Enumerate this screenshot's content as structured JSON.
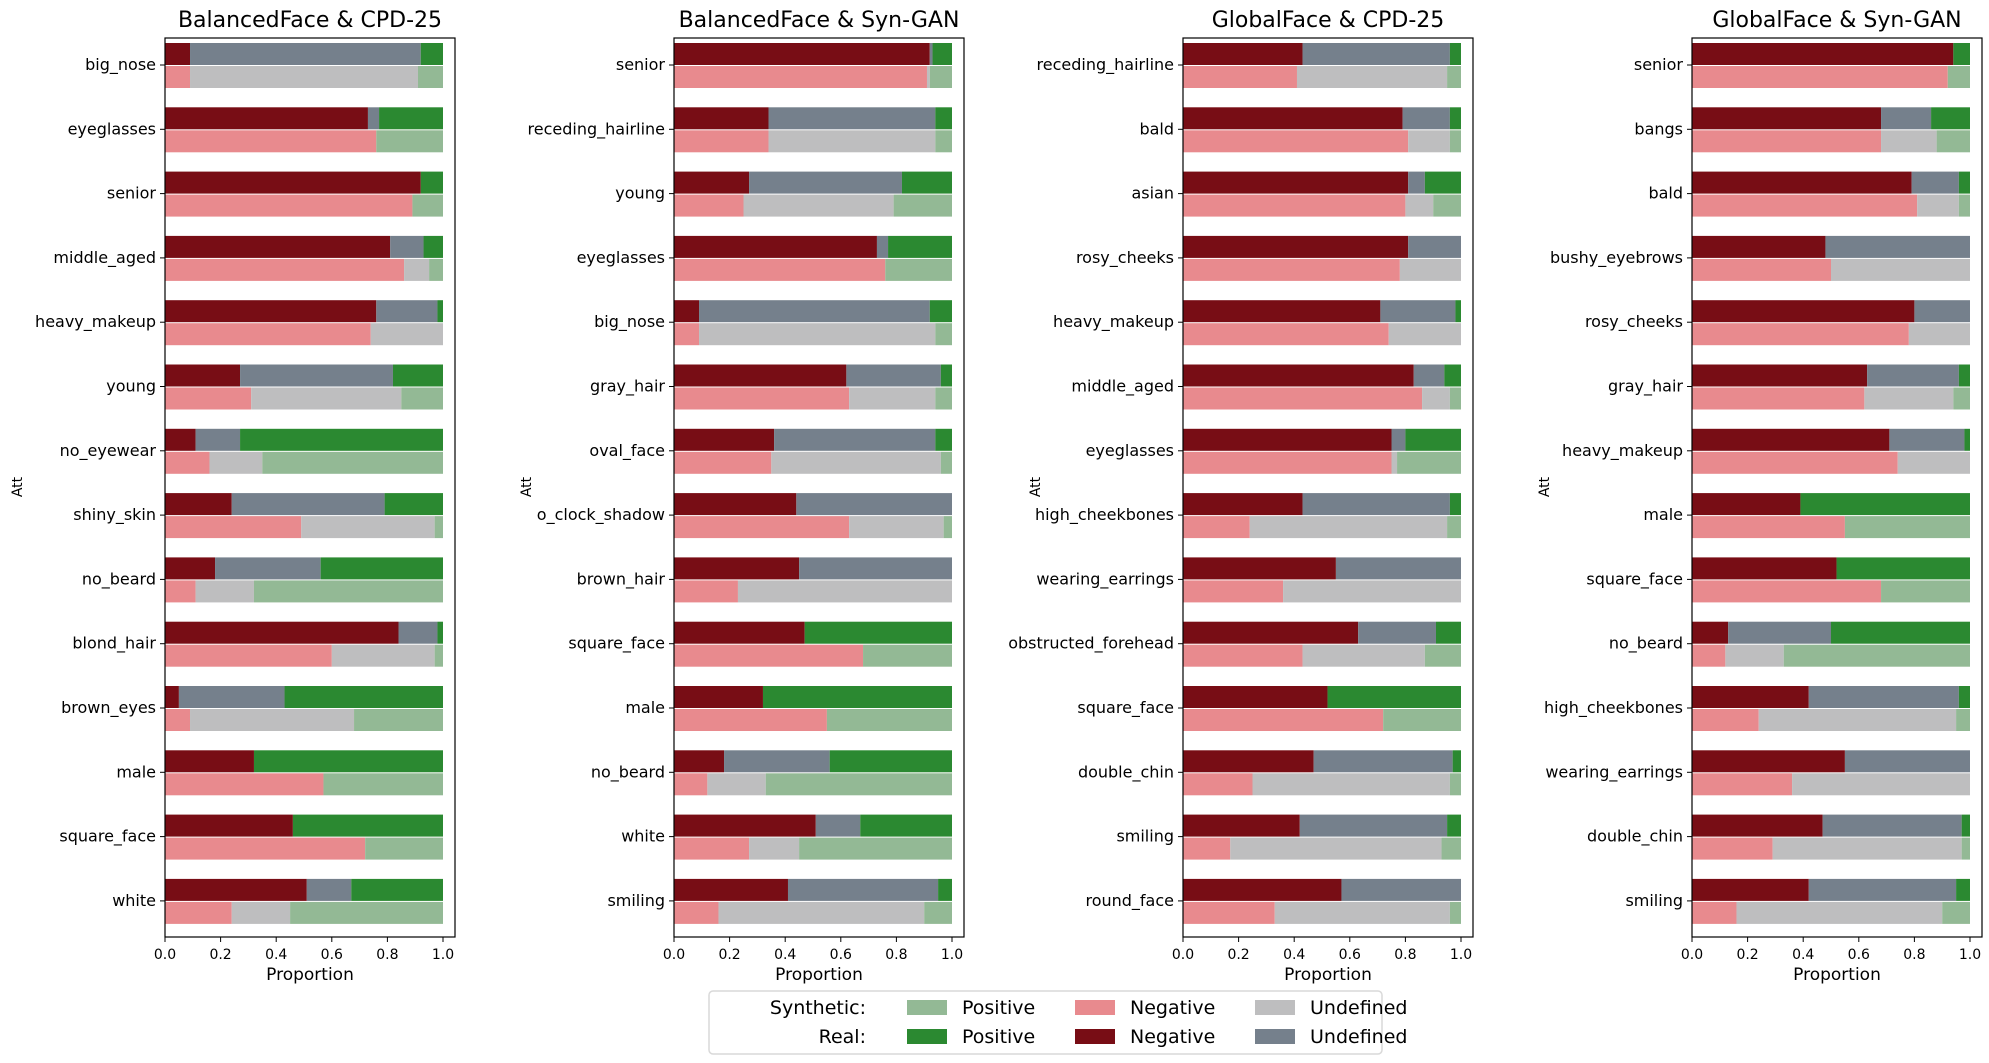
{
  "chart_data": [
    {
      "type": "bar",
      "orientation": "horizontal-stacked",
      "title": "BalancedFace & CPD-25",
      "xlabel": "Proportion",
      "ylabel": "Att",
      "xlim": [
        0,
        1.0
      ],
      "xticks": [
        "0.0",
        "0.2",
        "0.4",
        "0.6",
        "0.8",
        "1.0"
      ],
      "categories": [
        "big_nose",
        "eyeglasses",
        "senior",
        "middle_aged",
        "heavy_makeup",
        "young",
        "no_eyewear",
        "shiny_skin",
        "no_beard",
        "blond_hair",
        "brown_eyes",
        "male",
        "square_face",
        "white"
      ],
      "series": [
        {
          "group": "Real",
          "name": "Negative",
          "values": [
            0.09,
            0.73,
            0.92,
            0.81,
            0.76,
            0.27,
            0.11,
            0.24,
            0.18,
            0.84,
            0.05,
            0.32,
            0.46,
            0.51
          ]
        },
        {
          "group": "Real",
          "name": "Undefined",
          "values": [
            0.83,
            0.04,
            0.0,
            0.12,
            0.22,
            0.55,
            0.16,
            0.55,
            0.38,
            0.14,
            0.38,
            0.0,
            0.0,
            0.16
          ]
        },
        {
          "group": "Real",
          "name": "Positive",
          "values": [
            0.08,
            0.23,
            0.08,
            0.07,
            0.02,
            0.18,
            0.73,
            0.21,
            0.44,
            0.02,
            0.57,
            0.68,
            0.54,
            0.33
          ]
        },
        {
          "group": "Synthetic",
          "name": "Negative",
          "values": [
            0.09,
            0.76,
            0.89,
            0.86,
            0.74,
            0.31,
            0.16,
            0.49,
            0.11,
            0.6,
            0.09,
            0.57,
            0.72,
            0.24
          ]
        },
        {
          "group": "Synthetic",
          "name": "Undefined",
          "values": [
            0.82,
            0.0,
            0.0,
            0.09,
            0.26,
            0.54,
            0.19,
            0.48,
            0.21,
            0.37,
            0.59,
            0.0,
            0.0,
            0.21
          ]
        },
        {
          "group": "Synthetic",
          "name": "Positive",
          "values": [
            0.09,
            0.24,
            0.11,
            0.05,
            0.0,
            0.15,
            0.65,
            0.03,
            0.68,
            0.03,
            0.32,
            0.43,
            0.28,
            0.55
          ]
        }
      ]
    },
    {
      "type": "bar",
      "orientation": "horizontal-stacked",
      "title": "BalancedFace & Syn-GAN",
      "xlabel": "Proportion",
      "ylabel": "Att",
      "xlim": [
        0,
        1.0
      ],
      "xticks": [
        "0.0",
        "0.2",
        "0.4",
        "0.6",
        "0.8",
        "1.0"
      ],
      "categories": [
        "senior",
        "receding_hairline",
        "young",
        "eyeglasses",
        "big_nose",
        "gray_hair",
        "oval_face",
        "o_clock_shadow",
        "brown_hair",
        "square_face",
        "male",
        "no_beard",
        "white",
        "smiling"
      ],
      "series": [
        {
          "group": "Real",
          "name": "Negative",
          "values": [
            0.92,
            0.34,
            0.27,
            0.73,
            0.09,
            0.62,
            0.36,
            0.44,
            0.45,
            0.47,
            0.32,
            0.18,
            0.51,
            0.41
          ]
        },
        {
          "group": "Real",
          "name": "Undefined",
          "values": [
            0.01,
            0.6,
            0.55,
            0.04,
            0.83,
            0.34,
            0.58,
            0.56,
            0.55,
            0.0,
            0.0,
            0.38,
            0.16,
            0.54
          ]
        },
        {
          "group": "Real",
          "name": "Positive",
          "values": [
            0.07,
            0.06,
            0.18,
            0.23,
            0.08,
            0.04,
            0.06,
            0.0,
            0.0,
            0.53,
            0.68,
            0.44,
            0.33,
            0.05
          ]
        },
        {
          "group": "Synthetic",
          "name": "Negative",
          "values": [
            0.91,
            0.34,
            0.25,
            0.76,
            0.09,
            0.63,
            0.35,
            0.63,
            0.23,
            0.68,
            0.55,
            0.12,
            0.27,
            0.16
          ]
        },
        {
          "group": "Synthetic",
          "name": "Undefined",
          "values": [
            0.01,
            0.6,
            0.54,
            0.0,
            0.85,
            0.31,
            0.61,
            0.34,
            0.77,
            0.0,
            0.0,
            0.21,
            0.18,
            0.74
          ]
        },
        {
          "group": "Synthetic",
          "name": "Positive",
          "values": [
            0.08,
            0.06,
            0.21,
            0.24,
            0.06,
            0.06,
            0.04,
            0.03,
            0.0,
            0.32,
            0.45,
            0.67,
            0.55,
            0.1
          ]
        }
      ]
    },
    {
      "type": "bar",
      "orientation": "horizontal-stacked",
      "title": "GlobalFace & CPD-25",
      "xlabel": "Proportion",
      "ylabel": "Att",
      "xlim": [
        0,
        1.0
      ],
      "xticks": [
        "0.0",
        "0.2",
        "0.4",
        "0.6",
        "0.8",
        "1.0"
      ],
      "categories": [
        "receding_hairline",
        "bald",
        "asian",
        "rosy_cheeks",
        "heavy_makeup",
        "middle_aged",
        "eyeglasses",
        "high_cheekbones",
        "wearing_earrings",
        "obstructed_forehead",
        "square_face",
        "double_chin",
        "smiling",
        "round_face"
      ],
      "series": [
        {
          "group": "Real",
          "name": "Negative",
          "values": [
            0.43,
            0.79,
            0.81,
            0.81,
            0.71,
            0.83,
            0.75,
            0.43,
            0.55,
            0.63,
            0.52,
            0.47,
            0.42,
            0.57
          ]
        },
        {
          "group": "Real",
          "name": "Undefined",
          "values": [
            0.53,
            0.17,
            0.06,
            0.19,
            0.27,
            0.11,
            0.05,
            0.53,
            0.45,
            0.28,
            0.0,
            0.5,
            0.53,
            0.43
          ]
        },
        {
          "group": "Real",
          "name": "Positive",
          "values": [
            0.04,
            0.04,
            0.13,
            0.0,
            0.02,
            0.06,
            0.2,
            0.04,
            0.0,
            0.09,
            0.48,
            0.03,
            0.05,
            0.0
          ]
        },
        {
          "group": "Synthetic",
          "name": "Negative",
          "values": [
            0.41,
            0.81,
            0.8,
            0.78,
            0.74,
            0.86,
            0.75,
            0.24,
            0.36,
            0.43,
            0.72,
            0.25,
            0.17,
            0.33
          ]
        },
        {
          "group": "Synthetic",
          "name": "Undefined",
          "values": [
            0.54,
            0.15,
            0.1,
            0.22,
            0.26,
            0.1,
            0.02,
            0.71,
            0.64,
            0.44,
            0.0,
            0.71,
            0.76,
            0.63
          ]
        },
        {
          "group": "Synthetic",
          "name": "Positive",
          "values": [
            0.05,
            0.04,
            0.1,
            0.0,
            0.0,
            0.04,
            0.23,
            0.05,
            0.0,
            0.13,
            0.28,
            0.04,
            0.07,
            0.04
          ]
        }
      ]
    },
    {
      "type": "bar",
      "orientation": "horizontal-stacked",
      "title": "GlobalFace & Syn-GAN",
      "xlabel": "Proportion",
      "ylabel": "Att",
      "xlim": [
        0,
        1.0
      ],
      "xticks": [
        "0.0",
        "0.2",
        "0.4",
        "0.6",
        "0.8",
        "1.0"
      ],
      "categories": [
        "senior",
        "bangs",
        "bald",
        "bushy_eyebrows",
        "rosy_cheeks",
        "gray_hair",
        "heavy_makeup",
        "male",
        "square_face",
        "no_beard",
        "high_cheekbones",
        "wearing_earrings",
        "double_chin",
        "smiling"
      ],
      "series": [
        {
          "group": "Real",
          "name": "Negative",
          "values": [
            0.94,
            0.68,
            0.79,
            0.48,
            0.8,
            0.63,
            0.71,
            0.39,
            0.52,
            0.13,
            0.42,
            0.55,
            0.47,
            0.42
          ]
        },
        {
          "group": "Real",
          "name": "Undefined",
          "values": [
            0.0,
            0.18,
            0.17,
            0.52,
            0.2,
            0.33,
            0.27,
            0.0,
            0.0,
            0.37,
            0.54,
            0.45,
            0.5,
            0.53
          ]
        },
        {
          "group": "Real",
          "name": "Positive",
          "values": [
            0.06,
            0.14,
            0.04,
            0.0,
            0.0,
            0.04,
            0.02,
            0.61,
            0.48,
            0.5,
            0.04,
            0.0,
            0.03,
            0.05
          ]
        },
        {
          "group": "Synthetic",
          "name": "Negative",
          "values": [
            0.92,
            0.68,
            0.81,
            0.5,
            0.78,
            0.62,
            0.74,
            0.55,
            0.68,
            0.12,
            0.24,
            0.36,
            0.29,
            0.16
          ]
        },
        {
          "group": "Synthetic",
          "name": "Undefined",
          "values": [
            0.0,
            0.2,
            0.15,
            0.5,
            0.22,
            0.32,
            0.26,
            0.0,
            0.0,
            0.21,
            0.71,
            0.64,
            0.68,
            0.74
          ]
        },
        {
          "group": "Synthetic",
          "name": "Positive",
          "values": [
            0.08,
            0.12,
            0.04,
            0.0,
            0.0,
            0.06,
            0.0,
            0.45,
            0.32,
            0.67,
            0.05,
            0.0,
            0.03,
            0.1
          ]
        }
      ]
    }
  ],
  "legend": {
    "placement": "bottom-center",
    "rows": [
      {
        "label": "Synthetic:",
        "entries": [
          {
            "name": "Positive",
            "color": "#93b995"
          },
          {
            "name": "Negative",
            "color": "#e88a8e"
          },
          {
            "name": "Undefined",
            "color": "#bebebf"
          }
        ]
      },
      {
        "label": "Real:",
        "entries": [
          {
            "name": "Positive",
            "color": "#2b8931"
          },
          {
            "name": "Negative",
            "color": "#780d15"
          },
          {
            "name": "Undefined",
            "color": "#75808c"
          }
        ]
      }
    ]
  },
  "colors": {
    "Real": {
      "Negative": "#780d15",
      "Undefined": "#75808c",
      "Positive": "#2b8931"
    },
    "Synthetic": {
      "Negative": "#e88a8e",
      "Undefined": "#bebebf",
      "Positive": "#93b995"
    }
  }
}
